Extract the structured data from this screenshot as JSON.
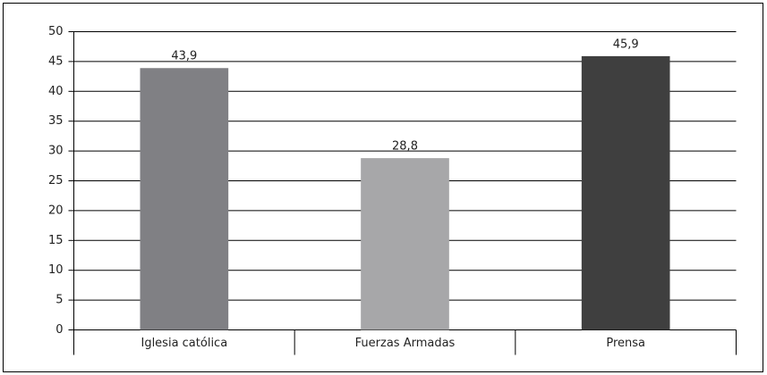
{
  "chart_data": {
    "type": "bar",
    "categories": [
      "Iglesia católica",
      "Fuerzas Armadas",
      "Prensa"
    ],
    "values": [
      43.9,
      28.8,
      45.9
    ],
    "value_labels": [
      "43,9",
      "28,8",
      "45,9"
    ],
    "colors": [
      "#808084",
      "#a7a7a9",
      "#3f3f3f"
    ],
    "ylim": [
      0,
      50
    ],
    "yticks": [
      0,
      5,
      10,
      15,
      20,
      25,
      30,
      35,
      40,
      45,
      50
    ],
    "grid": true
  }
}
